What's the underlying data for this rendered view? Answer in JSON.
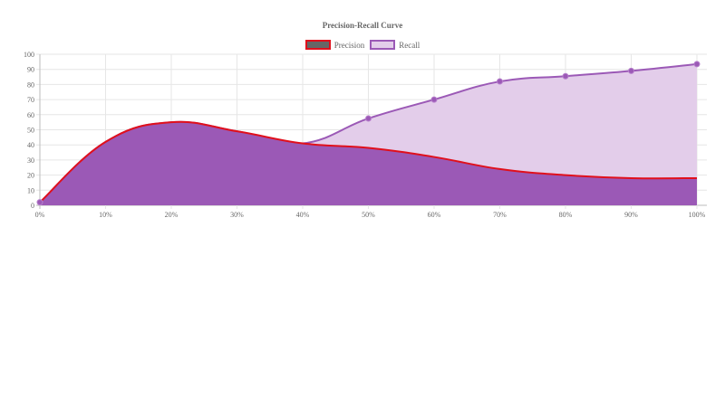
{
  "chart_data": {
    "type": "area",
    "title": "Precision-Recall Curve",
    "xlabel": "",
    "ylabel": "",
    "categories": [
      "0%",
      "10%",
      "20%",
      "30%",
      "40%",
      "50%",
      "60%",
      "70%",
      "80%",
      "90%",
      "100%"
    ],
    "ylim": [
      0,
      100
    ],
    "yticks": [
      0,
      10,
      20,
      30,
      40,
      50,
      60,
      70,
      80,
      90,
      100
    ],
    "grid": true,
    "legend_position": "top",
    "series": [
      {
        "name": "Precision",
        "values": [
          2,
          42,
          55,
          49,
          41,
          38,
          32,
          24,
          20,
          18,
          18
        ],
        "line_color": "#e0101c",
        "fill_color": "#9b59b6",
        "point_color": "#9b59b6"
      },
      {
        "name": "Recall",
        "values": [
          2,
          42,
          55,
          49,
          41,
          57.5,
          70,
          82,
          85.5,
          89,
          93.5
        ],
        "line_color": "#9b59b6",
        "fill_color": "#e3cdea",
        "point_color": "#9b59b6"
      }
    ]
  },
  "legend": {
    "items": [
      {
        "label": "Precision",
        "swatch_fill": "#666666",
        "swatch_border": "#e0101c"
      },
      {
        "label": "Recall",
        "swatch_fill": "#e3cdea",
        "swatch_border": "#9b59b6"
      }
    ]
  }
}
